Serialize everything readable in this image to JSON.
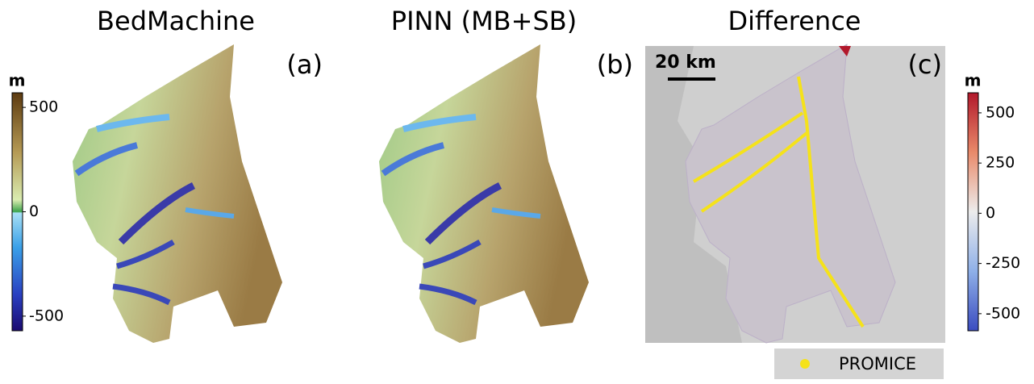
{
  "panels": [
    {
      "title": "BedMachine",
      "label": "(a)"
    },
    {
      "title": "PINN (MB+SB)",
      "label": "(b)"
    },
    {
      "title": "Difference",
      "label": "(c)",
      "scale_bar": "20 km"
    }
  ],
  "colorbars": [
    {
      "unit": "m",
      "lim": [
        -570,
        570
      ],
      "ticks": [
        500,
        0,
        -500
      ]
    },
    {
      "unit": "m",
      "lim": [
        -585,
        600
      ],
      "ticks": [
        500,
        250,
        0,
        -250,
        -500
      ]
    }
  ],
  "legend": {
    "label": "PROMICE"
  }
}
